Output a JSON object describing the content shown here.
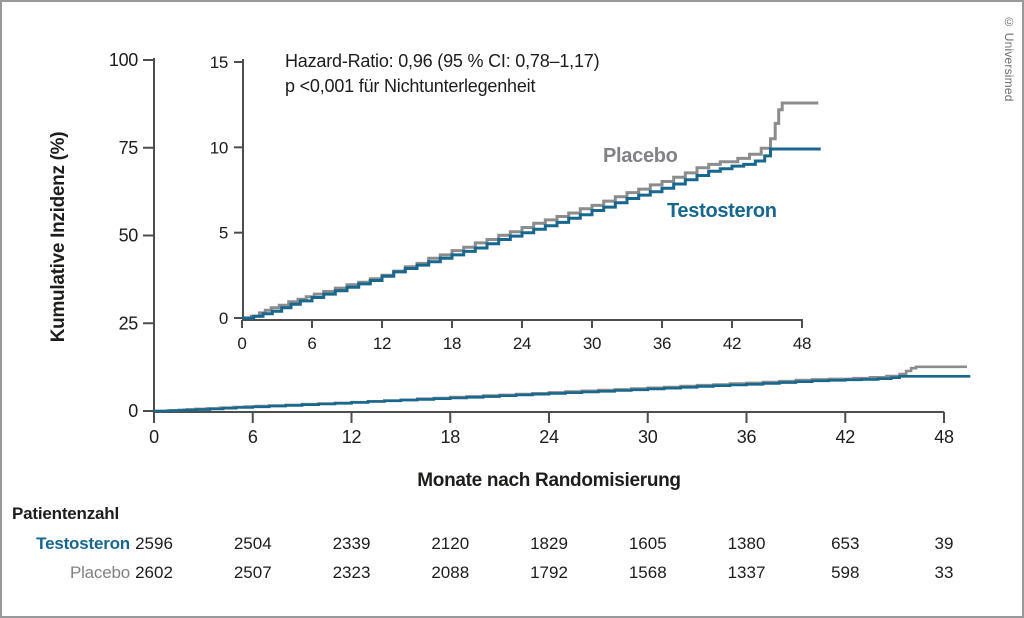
{
  "figure": {
    "copyright": "© Universimed"
  },
  "chart_data": {
    "type": "line",
    "step": true,
    "title": "",
    "xlabel": "Monate nach Randomisierung",
    "ylabel": "Kumulative Inzidenz (%)",
    "annotation": [
      "Hazard-Ratio: 0,96 (95 % CI: 0,78–1,17)",
      "p <0,001 für Nichtunterlegenheit"
    ],
    "legend_position": "inline-labels",
    "grid": false,
    "main_axis": {
      "xlim": [
        0,
        51
      ],
      "ylim": [
        0,
        100
      ],
      "xticks": [
        0,
        6,
        12,
        18,
        24,
        30,
        36,
        42,
        48
      ],
      "yticks": [
        0,
        25,
        50,
        75,
        100
      ]
    },
    "inset_axis": {
      "xlim": [
        0,
        48
      ],
      "ylim": [
        0,
        15
      ],
      "xticks": [
        0,
        6,
        12,
        18,
        24,
        30,
        36,
        42,
        48
      ],
      "yticks": [
        0,
        5,
        10,
        15
      ]
    },
    "series": [
      {
        "name": "Placebo",
        "color": "#8c8c8c",
        "label_color": "#808285",
        "points": [
          [
            0,
            0
          ],
          [
            0.8,
            0.1
          ],
          [
            1.5,
            0.3
          ],
          [
            2,
            0.45
          ],
          [
            2.5,
            0.6
          ],
          [
            3.2,
            0.75
          ],
          [
            4,
            0.95
          ],
          [
            4.8,
            1.1
          ],
          [
            5.5,
            1.25
          ],
          [
            6.2,
            1.4
          ],
          [
            7,
            1.55
          ],
          [
            8,
            1.75
          ],
          [
            9,
            1.95
          ],
          [
            10,
            2.1
          ],
          [
            11,
            2.3
          ],
          [
            12,
            2.5
          ],
          [
            13,
            2.75
          ],
          [
            14,
            3.0
          ],
          [
            15,
            3.2
          ],
          [
            16,
            3.5
          ],
          [
            17,
            3.7
          ],
          [
            18,
            3.95
          ],
          [
            19,
            4.15
          ],
          [
            20,
            4.4
          ],
          [
            21,
            4.6
          ],
          [
            22,
            4.85
          ],
          [
            23,
            5.05
          ],
          [
            24,
            5.3
          ],
          [
            25,
            5.55
          ],
          [
            26,
            5.75
          ],
          [
            27,
            5.95
          ],
          [
            28,
            6.15
          ],
          [
            29,
            6.4
          ],
          [
            30,
            6.6
          ],
          [
            31,
            6.85
          ],
          [
            32,
            7.1
          ],
          [
            33,
            7.35
          ],
          [
            34,
            7.55
          ],
          [
            35,
            7.8
          ],
          [
            36,
            8.0
          ],
          [
            37,
            8.25
          ],
          [
            38,
            8.5
          ],
          [
            39,
            8.8
          ],
          [
            40,
            9.0
          ],
          [
            41,
            9.15
          ],
          [
            42.5,
            9.35
          ],
          [
            43.5,
            9.6
          ],
          [
            44.5,
            9.95
          ],
          [
            45.3,
            10.5
          ],
          [
            45.7,
            11.4
          ],
          [
            46,
            12.2
          ],
          [
            46.3,
            12.6
          ],
          [
            49.4,
            12.6
          ]
        ]
      },
      {
        "name": "Testosteron",
        "color": "#17678f",
        "label_color": "#17678f",
        "points": [
          [
            0,
            0
          ],
          [
            1,
            0.1
          ],
          [
            1.8,
            0.25
          ],
          [
            2.6,
            0.4
          ],
          [
            3.4,
            0.6
          ],
          [
            4.2,
            0.8
          ],
          [
            5,
            1.0
          ],
          [
            6,
            1.2
          ],
          [
            7,
            1.4
          ],
          [
            8,
            1.6
          ],
          [
            9,
            1.8
          ],
          [
            10,
            2.0
          ],
          [
            11,
            2.2
          ],
          [
            12,
            2.45
          ],
          [
            13,
            2.7
          ],
          [
            14,
            2.9
          ],
          [
            15,
            3.1
          ],
          [
            16,
            3.3
          ],
          [
            17,
            3.5
          ],
          [
            18,
            3.7
          ],
          [
            19,
            3.9
          ],
          [
            20,
            4.1
          ],
          [
            21,
            4.35
          ],
          [
            22,
            4.6
          ],
          [
            23,
            4.8
          ],
          [
            24,
            5.0
          ],
          [
            25,
            5.2
          ],
          [
            26,
            5.4
          ],
          [
            27,
            5.6
          ],
          [
            28,
            5.85
          ],
          [
            29,
            6.05
          ],
          [
            30,
            6.3
          ],
          [
            31,
            6.5
          ],
          [
            32,
            6.75
          ],
          [
            33,
            7.0
          ],
          [
            34,
            7.2
          ],
          [
            35,
            7.4
          ],
          [
            36,
            7.6
          ],
          [
            37,
            7.85
          ],
          [
            38,
            8.1
          ],
          [
            39,
            8.35
          ],
          [
            40,
            8.6
          ],
          [
            41,
            8.75
          ],
          [
            42,
            8.9
          ],
          [
            43,
            9.0
          ],
          [
            44,
            9.2
          ],
          [
            44.8,
            9.5
          ],
          [
            45.3,
            9.9
          ],
          [
            49.6,
            9.9
          ]
        ]
      }
    ]
  },
  "risk_table": {
    "title": "Patientenzahl",
    "timepoints": [
      0,
      6,
      12,
      18,
      24,
      30,
      36,
      42,
      48
    ],
    "rows": [
      {
        "name": "Testosteron",
        "color": "#17678f",
        "counts": [
          2596,
          2504,
          2339,
          2120,
          1829,
          1605,
          1380,
          653,
          39
        ]
      },
      {
        "name": "Placebo",
        "color": "#808285",
        "counts": [
          2602,
          2507,
          2323,
          2088,
          1792,
          1568,
          1337,
          598,
          33
        ]
      }
    ]
  },
  "colors": {
    "axis": "#4d4d4d",
    "text": "#1d1d1b",
    "frame": "#98999b"
  }
}
